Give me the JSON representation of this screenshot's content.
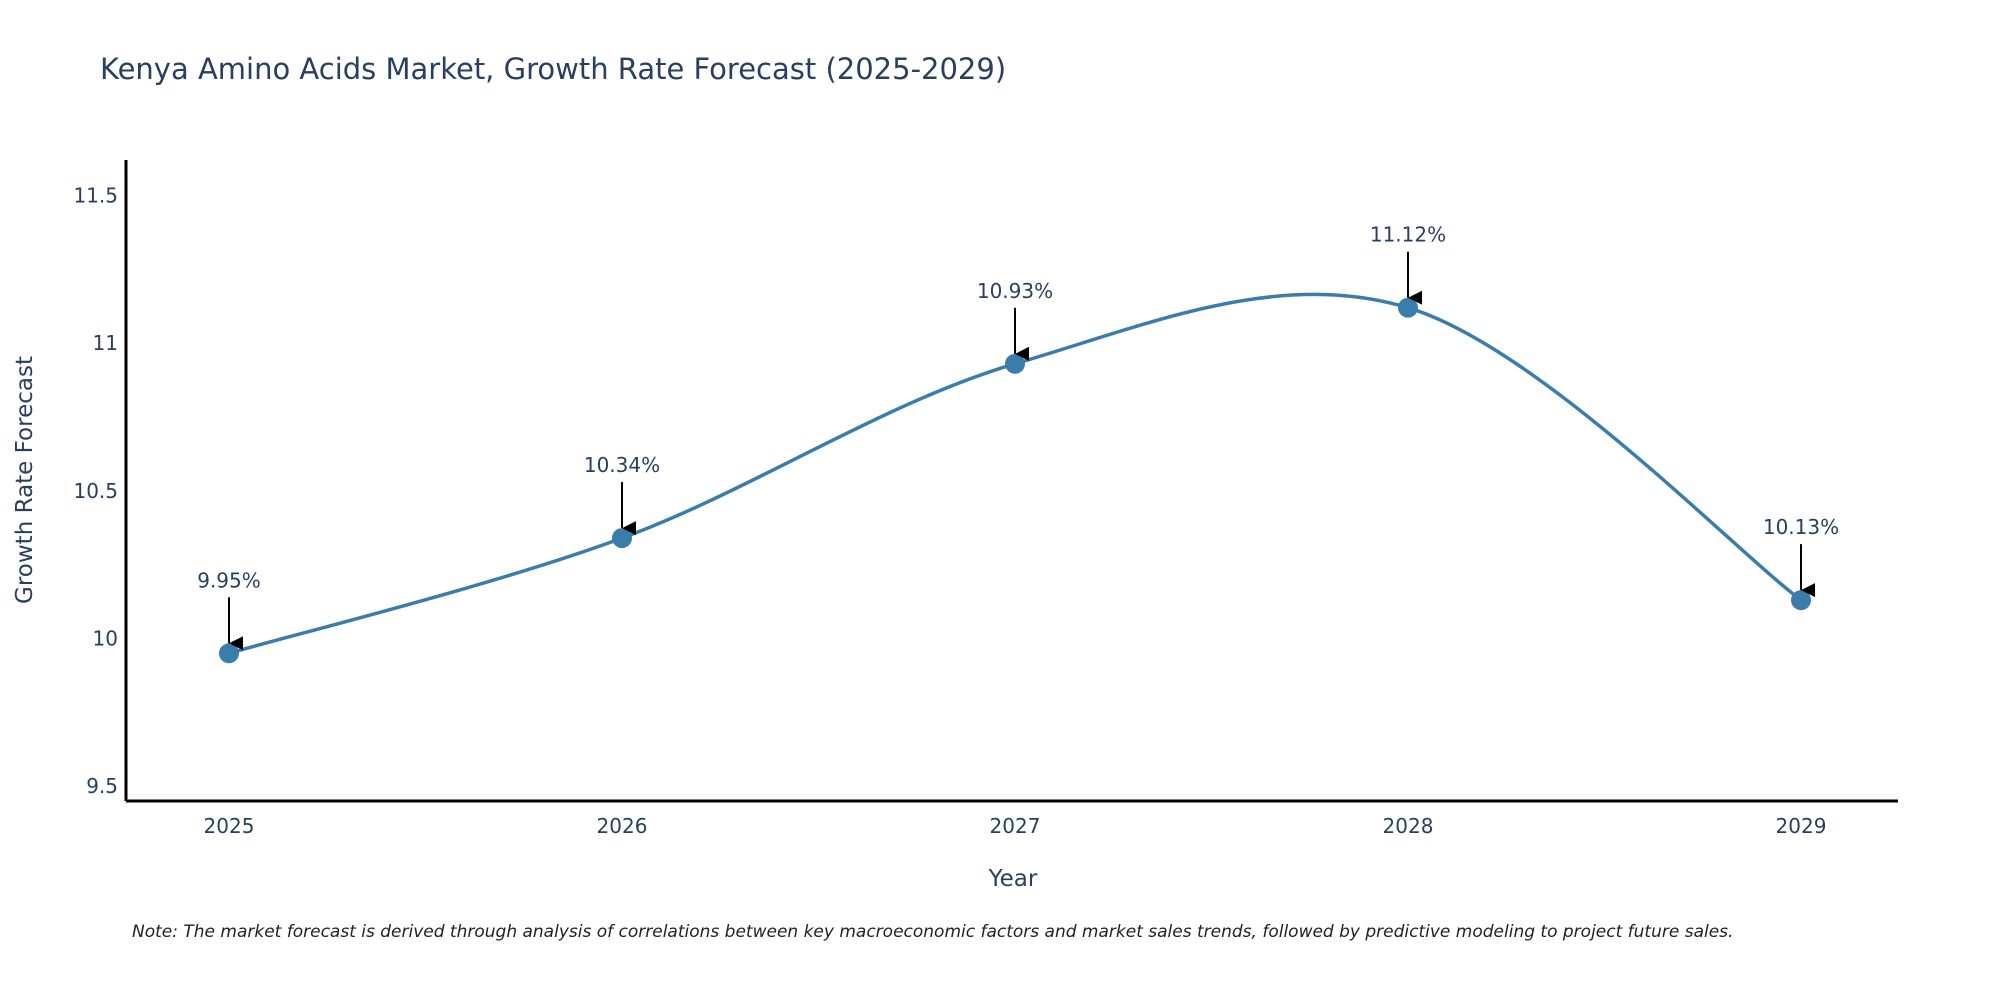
{
  "chart_data": {
    "type": "line",
    "title": "Kenya Amino Acids Market, Growth Rate Forecast (2025-2029)",
    "xlabel": "Year",
    "ylabel": "Growth Rate Forecast",
    "categories": [
      "2025",
      "2026",
      "2027",
      "2028",
      "2029"
    ],
    "series": [
      {
        "name": "Growth Rate Forecast",
        "values": [
          9.95,
          10.34,
          10.93,
          11.12,
          10.13
        ],
        "labels": [
          "9.95%",
          "10.34%",
          "10.93%",
          "11.12%",
          "10.13%"
        ]
      }
    ],
    "y_ticks": [
      9.5,
      10,
      10.5,
      11,
      11.5
    ],
    "y_tick_labels": [
      "9.5",
      "10",
      "10.5",
      "11",
      "11.5"
    ],
    "ylim": [
      9.45,
      11.62
    ],
    "grid": false,
    "line_shape": "spline",
    "annotation_arrows": true
  },
  "note": "Note: The market forecast is derived through analysis of correlations between key macroeconomic factors and market sales trends, followed by predictive modeling to project future sales.",
  "colors": {
    "line": "#3a7dab",
    "marker": "#3a7dab",
    "text": "#2a3f5f",
    "axis": "#000000",
    "arrow": "#000000"
  }
}
